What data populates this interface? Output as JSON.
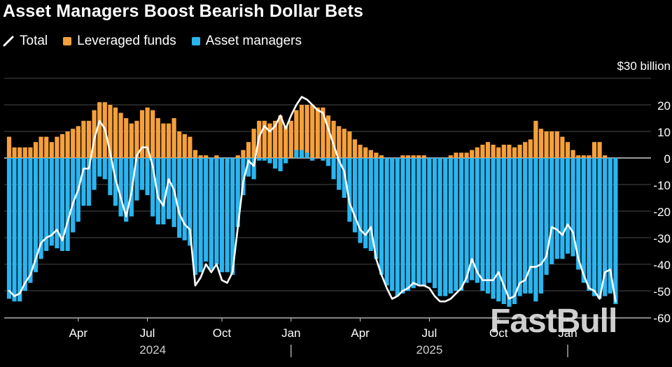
{
  "chart_data": {
    "type": "bar",
    "title": "Asset Managers Boost Bearish Dollar Bets",
    "unit_label": "$30 billion",
    "ylim": [
      -62,
      30
    ],
    "yticks": [
      20,
      10,
      0,
      -10,
      -20,
      -30,
      -40,
      -50,
      -60
    ],
    "ytick_labels": [
      "20",
      "10",
      "0",
      "-10",
      "-20",
      "-30",
      "-40",
      "-50",
      "-60"
    ],
    "x_month_labels": [
      {
        "label": "Apr",
        "index": 13
      },
      {
        "label": "Jul",
        "index": 26
      },
      {
        "label": "Oct",
        "index": 40
      },
      {
        "label": "Jan",
        "index": 53
      },
      {
        "label": "Apr",
        "index": 66
      },
      {
        "label": "Jul",
        "index": 79
      },
      {
        "label": "Oct",
        "index": 92
      },
      {
        "label": "Jan",
        "index": 105
      }
    ],
    "x_year_labels": [
      {
        "label": "2024",
        "index": 27
      },
      {
        "label": "2025",
        "index": 79
      }
    ],
    "year_separators": [
      53,
      105
    ],
    "series": [
      {
        "name": "Total",
        "color": "#ffffff",
        "values": [
          -50,
          -52,
          -51,
          -47,
          -44,
          -38,
          -32,
          -30,
          -29,
          -27,
          -31,
          -24,
          -17,
          -12,
          -4,
          -4,
          7,
          14,
          11,
          2,
          -8,
          -15,
          -22,
          -13,
          1,
          4,
          4,
          -3,
          -15,
          -18,
          -8,
          -12,
          -21,
          -25,
          -27,
          -48,
          -45,
          -40,
          -43,
          -40,
          -46,
          -47,
          -43,
          -26,
          -9,
          -1,
          -3,
          8,
          12,
          10,
          12,
          16,
          11,
          16,
          20,
          23,
          22,
          20,
          18,
          17,
          11,
          5,
          -1,
          -5,
          -17,
          -22,
          -27,
          -29,
          -26,
          -38,
          -44,
          -49,
          -53,
          -52,
          -50,
          -49,
          -47,
          -48,
          -48,
          -49,
          -52,
          -54,
          -54,
          -53,
          -51,
          -49,
          -45,
          -38,
          -43,
          -46,
          -46,
          -46,
          -43,
          -48,
          -53,
          -52,
          -47,
          -46,
          -41,
          -41,
          -40,
          -37,
          -26,
          -27,
          -29,
          -25,
          -28,
          -38,
          -44,
          -49,
          -50,
          -53,
          -43,
          -42,
          -54
        ],
        "label_in_legend": "Total"
      },
      {
        "name": "Leveraged funds",
        "color": "#f6a03c",
        "values": [
          8,
          4,
          4,
          4,
          4,
          6,
          8,
          8,
          6,
          8,
          9,
          10,
          11,
          12,
          14,
          14,
          18,
          21,
          21,
          20,
          19,
          17,
          15,
          13,
          14,
          18,
          19,
          18,
          15,
          13,
          13,
          15,
          10,
          9,
          8,
          3,
          1,
          1,
          -1,
          1,
          -1,
          -2,
          -1,
          1,
          3,
          6,
          11,
          14,
          14,
          13,
          14,
          16,
          12,
          14,
          18,
          20,
          20,
          20,
          19,
          19,
          16,
          14,
          12,
          11,
          10,
          7,
          5,
          4,
          3,
          2,
          1,
          -1,
          -1,
          -1,
          1,
          1,
          1,
          1,
          1,
          -1,
          -2,
          -1,
          -1,
          1,
          2,
          2,
          2,
          3,
          4,
          5,
          6,
          5,
          4,
          5,
          5,
          4,
          5,
          6,
          7,
          14,
          11,
          10,
          10,
          10,
          8,
          6,
          3,
          1,
          1,
          1,
          6,
          6,
          1
        ],
        "label_in_legend": "Leveraged funds"
      },
      {
        "name": "Asset managers",
        "color": "#2ab5f0",
        "values": [
          -53,
          -54,
          -54,
          -50,
          -47,
          -43,
          -38,
          -35,
          -33,
          -34,
          -35,
          -35,
          -28,
          -24,
          -18,
          -18,
          -12,
          -7,
          -8,
          -14,
          -18,
          -22,
          -24,
          -22,
          -16,
          -12,
          -14,
          -22,
          -25,
          -25,
          -23,
          -26,
          -30,
          -31,
          -33,
          -44,
          -43,
          -39,
          -42,
          -40,
          -43,
          -43,
          -44,
          -26,
          -14,
          -7,
          -8,
          -1,
          -1,
          -2,
          -4,
          -5,
          -2,
          0,
          3,
          3,
          2,
          -1,
          0,
          -1,
          -3,
          -8,
          -12,
          -15,
          -24,
          -28,
          -32,
          -34,
          -35,
          -38,
          -44,
          -48,
          -50,
          -52,
          -51,
          -50,
          -49,
          -48,
          -48,
          -47,
          -49,
          -52,
          -52,
          -51,
          -50,
          -50,
          -47,
          -46,
          -47,
          -50,
          -51,
          -53,
          -54,
          -55,
          -56,
          -55,
          -52,
          -51,
          -51,
          -54,
          -51,
          -44,
          -40,
          -38,
          -38,
          -36,
          -37,
          -42,
          -47,
          -50,
          -52,
          -53,
          -52,
          -51,
          -55
        ],
        "label_in_legend": "Asset managers"
      }
    ]
  },
  "legend": {
    "total": "Total",
    "leveraged": "Leveraged funds",
    "asset": "Asset managers"
  },
  "watermark": "FastBull"
}
